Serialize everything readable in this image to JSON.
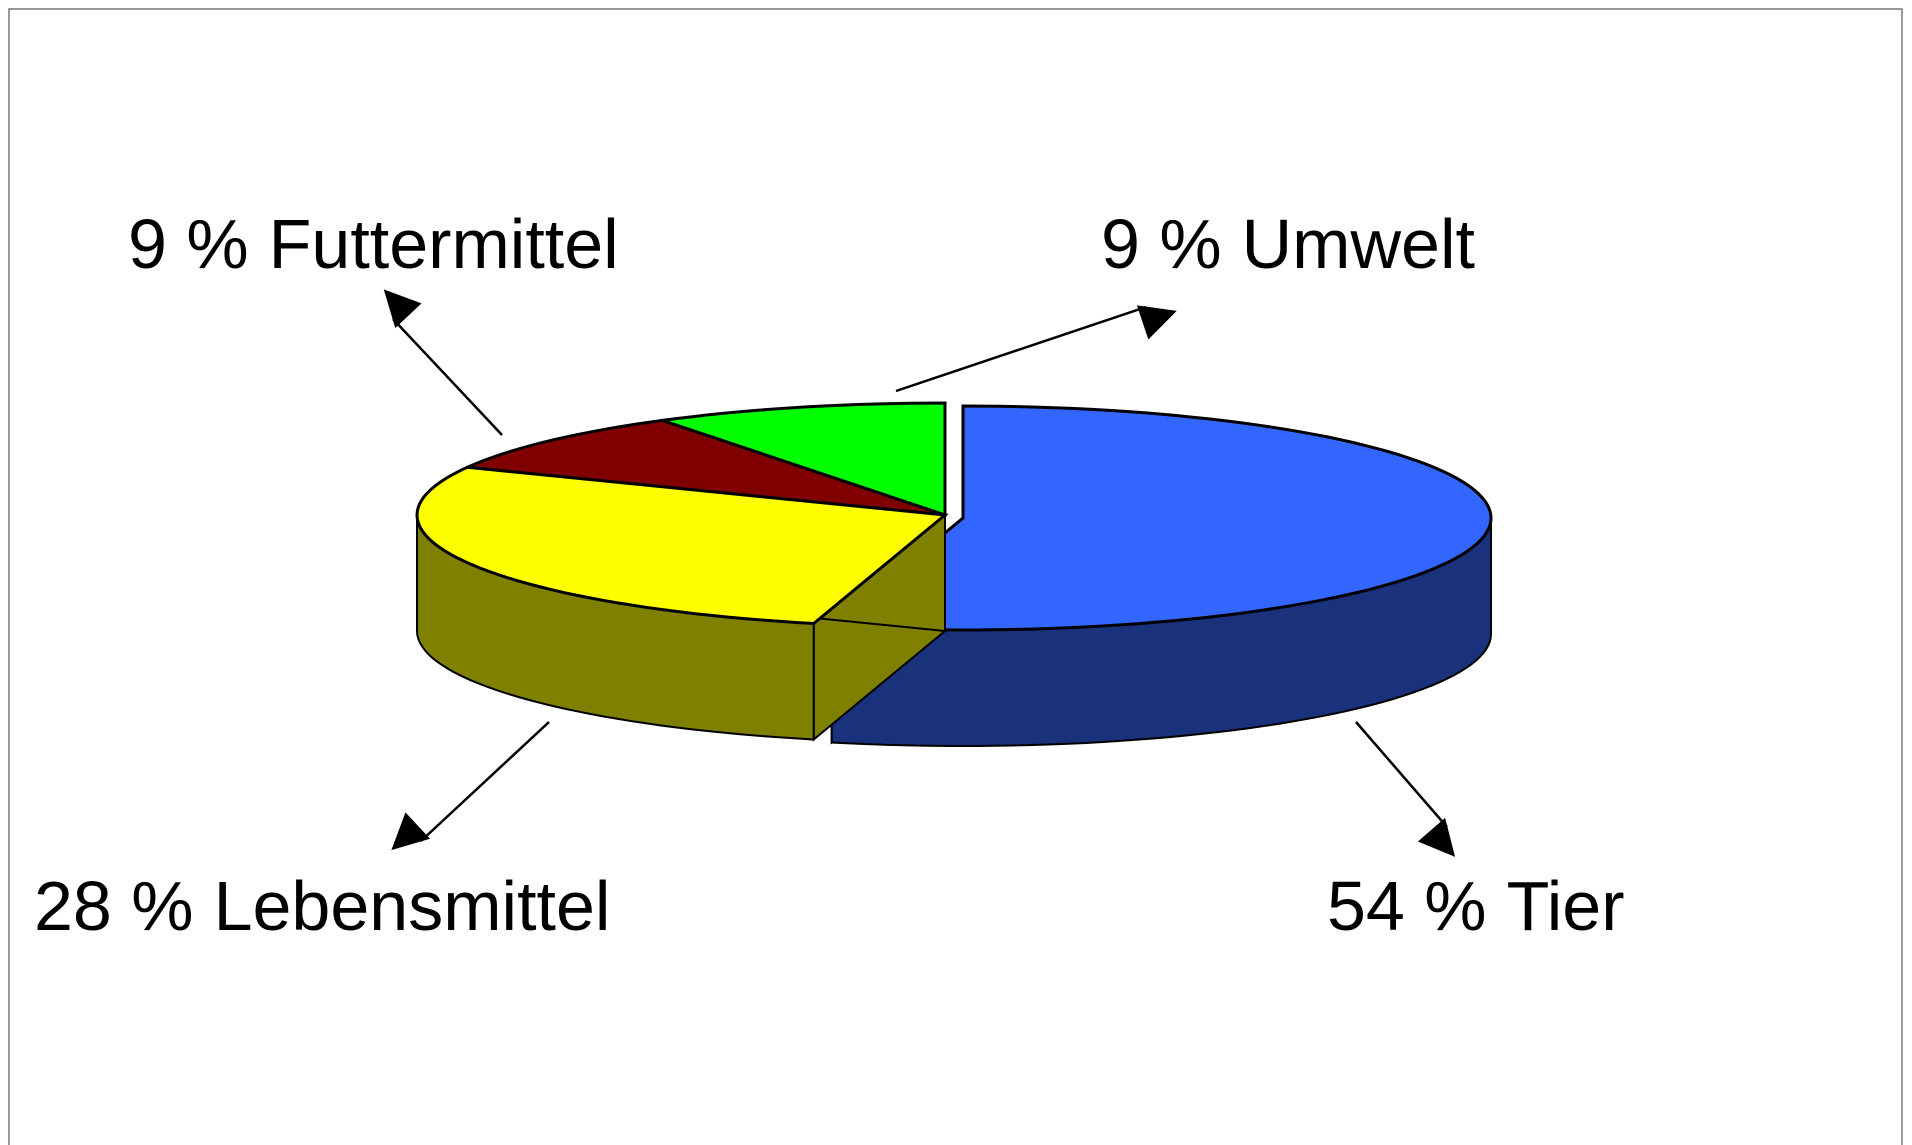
{
  "chart_data": {
    "type": "pie",
    "categories": [
      "Tier",
      "Lebensmittel",
      "Futtermittel",
      "Umwelt"
    ],
    "values": [
      54,
      28,
      9,
      9
    ],
    "value_labels": [
      "54 %",
      "28 %",
      "9 %",
      "9 %"
    ],
    "colors": [
      "#3366ff",
      "#ffff00",
      "#800000",
      "#00ff00"
    ],
    "side_colors": [
      "#1a317c",
      "#808000",
      "#5a0000",
      "#00a000"
    ]
  }
}
